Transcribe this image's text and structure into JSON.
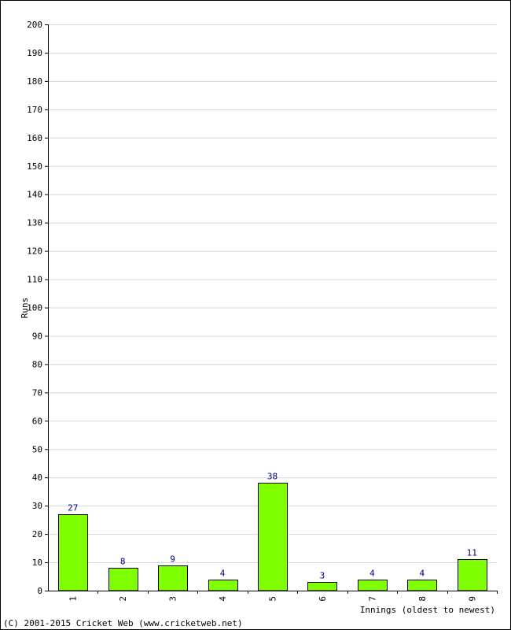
{
  "chart_data": {
    "type": "bar",
    "categories": [
      "1",
      "2",
      "3",
      "4",
      "5",
      "6",
      "7",
      "8",
      "9"
    ],
    "values": [
      27,
      8,
      9,
      4,
      38,
      3,
      4,
      4,
      11
    ],
    "data_labels": [
      "27",
      "8",
      "9",
      "4",
      "38",
      "3",
      "4",
      "4",
      "11"
    ],
    "title": "",
    "xlabel": "Innings (oldest to newest)",
    "ylabel": "Runs",
    "ylim": [
      0,
      200
    ],
    "y_ticks": [
      0,
      10,
      20,
      30,
      40,
      50,
      60,
      70,
      80,
      90,
      100,
      110,
      120,
      130,
      140,
      150,
      160,
      170,
      180,
      190,
      200
    ],
    "grid": true,
    "colors": {
      "bar_fill": "#80ff00",
      "bar_stroke": "#000000",
      "grid": "#d8d8d8",
      "data_label": "#000080",
      "axis": "#000000"
    }
  },
  "footer": {
    "copyright": "(C) 2001-2015 Cricket Web (www.cricketweb.net)"
  }
}
